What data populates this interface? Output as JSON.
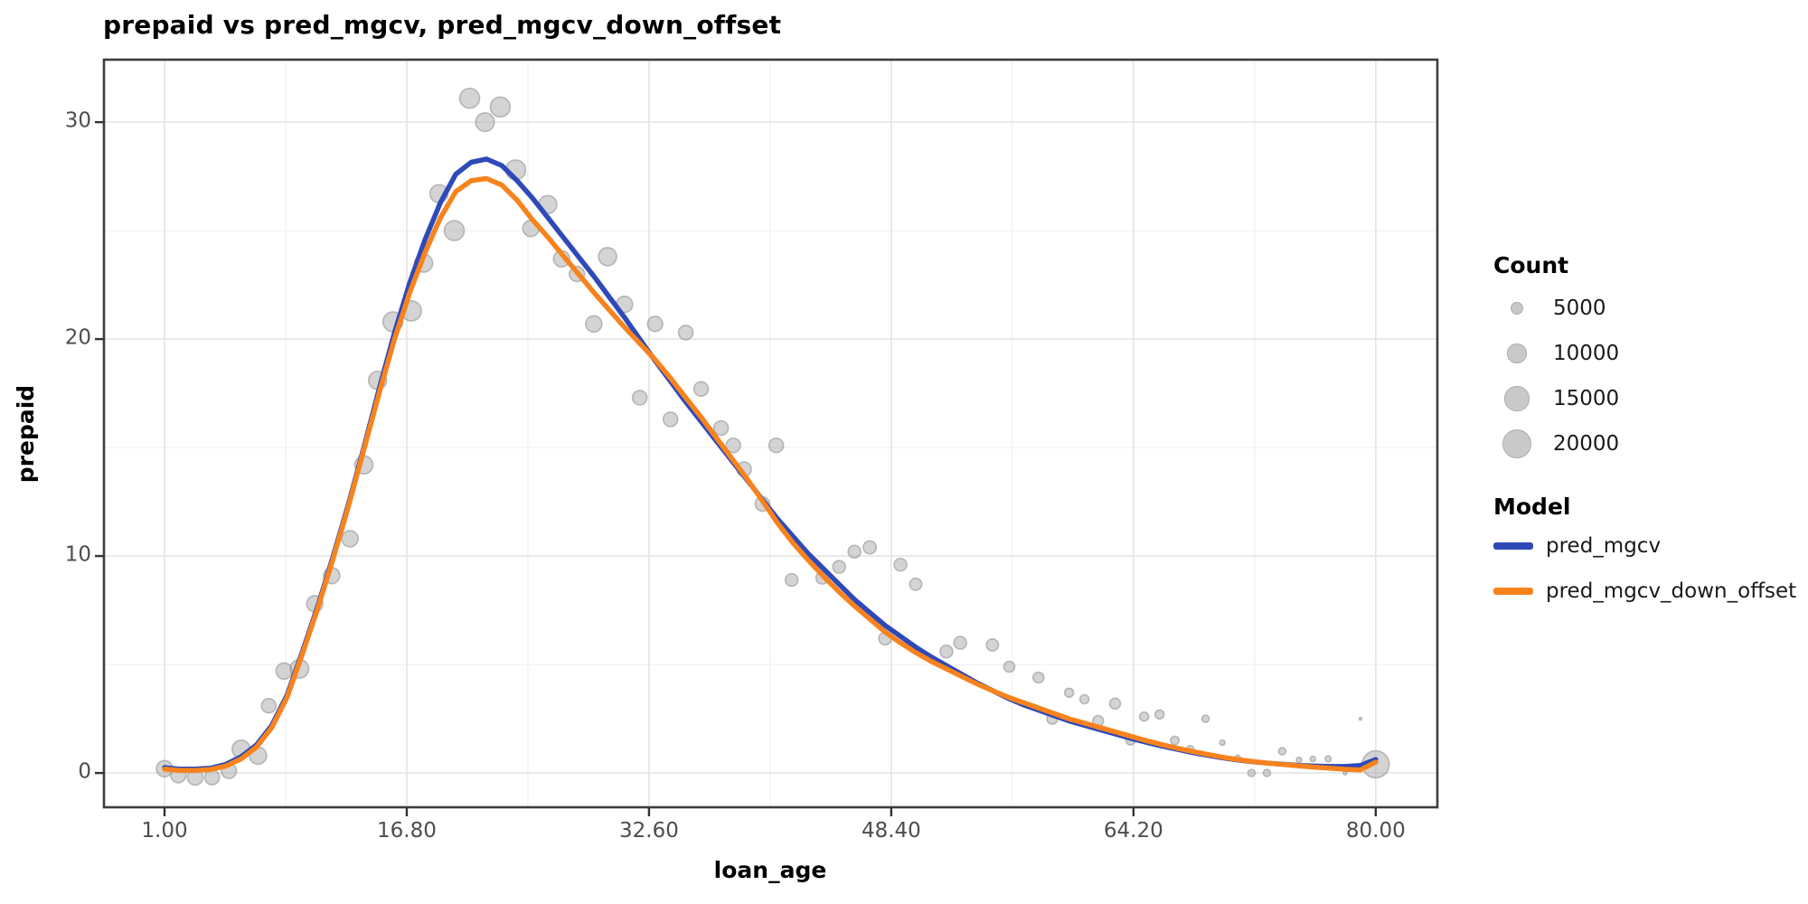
{
  "chart_data": {
    "type": "scatter",
    "title": "prepaid vs pred_mgcv, pred_mgcv_down_offset",
    "xlabel": "loan_age",
    "ylabel": "prepaid",
    "x_ticks": [
      "1.00",
      "16.80",
      "32.60",
      "48.40",
      "64.20",
      "80.00"
    ],
    "x_tick_values": [
      1,
      16.8,
      32.6,
      48.4,
      64.2,
      80
    ],
    "x_minor_values": [
      8.9,
      24.7,
      40.5,
      56.3,
      72.1
    ],
    "y_ticks": [
      "0",
      "10",
      "20",
      "30"
    ],
    "y_tick_values": [
      0,
      10,
      20,
      30
    ],
    "y_minor_values": [
      5,
      15,
      25
    ],
    "xlim": [
      -2.95,
      84.02
    ],
    "ylim": [
      -1.58,
      32.88
    ],
    "grid": {
      "major": true,
      "minor": true,
      "major_color": "#E4E4E4",
      "minor_color": "#F1F1F1"
    },
    "panel": {
      "border_color": "#3D3D3D",
      "background": "#FFFFFF",
      "tick_color": "#333333"
    },
    "point_style": {
      "fill": "#A9A9A9",
      "fill_opacity": 0.5,
      "stroke": "#8C8C8C",
      "stroke_opacity": 0.55
    },
    "points_format": [
      "loan_age",
      "prepaid",
      "count"
    ],
    "points": [
      [
        1.0,
        0.2,
        7600
      ],
      [
        1.9,
        -0.1,
        6800
      ],
      [
        3.0,
        -0.2,
        7000
      ],
      [
        4.1,
        -0.2,
        6500
      ],
      [
        5.2,
        0.1,
        6800
      ],
      [
        6.0,
        1.1,
        9050
      ],
      [
        7.1,
        0.8,
        8300
      ],
      [
        7.8,
        3.1,
        6250
      ],
      [
        8.8,
        4.7,
        7600
      ],
      [
        9.8,
        4.8,
        9500
      ],
      [
        10.8,
        7.8,
        7600
      ],
      [
        11.9,
        9.1,
        7600
      ],
      [
        13.1,
        10.8,
        7600
      ],
      [
        14.0,
        14.2,
        9050
      ],
      [
        14.9,
        18.1,
        9050
      ],
      [
        15.9,
        20.8,
        10650
      ],
      [
        17.1,
        21.3,
        11000
      ],
      [
        17.9,
        23.5,
        9050
      ],
      [
        18.9,
        26.7,
        9050
      ],
      [
        19.9,
        25.0,
        10650
      ],
      [
        20.9,
        31.1,
        10650
      ],
      [
        21.9,
        30.0,
        9500
      ],
      [
        22.9,
        30.7,
        10650
      ],
      [
        23.9,
        27.8,
        10650
      ],
      [
        24.9,
        25.1,
        7600
      ],
      [
        26.0,
        26.2,
        9050
      ],
      [
        26.9,
        23.7,
        7600
      ],
      [
        27.9,
        23.0,
        6800
      ],
      [
        29.0,
        20.7,
        7600
      ],
      [
        29.9,
        23.8,
        9050
      ],
      [
        31.0,
        21.6,
        7600
      ],
      [
        32.0,
        17.3,
        6250
      ],
      [
        33.0,
        20.7,
        6800
      ],
      [
        34.0,
        16.3,
        6250
      ],
      [
        35.0,
        20.3,
        6250
      ],
      [
        36.0,
        17.7,
        6250
      ],
      [
        37.3,
        15.9,
        6250
      ],
      [
        38.1,
        15.1,
        6250
      ],
      [
        38.8,
        14.0,
        6250
      ],
      [
        40.0,
        12.4,
        6250
      ],
      [
        40.9,
        15.1,
        6250
      ],
      [
        41.9,
        8.9,
        5000
      ],
      [
        43.9,
        9.0,
        5000
      ],
      [
        45.0,
        9.5,
        5000
      ],
      [
        46.0,
        10.2,
        5000
      ],
      [
        47.0,
        10.4,
        5300
      ],
      [
        48.0,
        6.2,
        5000
      ],
      [
        49.0,
        9.6,
        5000
      ],
      [
        50.0,
        8.7,
        4600
      ],
      [
        52.0,
        5.6,
        5000
      ],
      [
        52.9,
        6.0,
        5000
      ],
      [
        55.0,
        5.9,
        4600
      ],
      [
        56.1,
        4.9,
        3900
      ],
      [
        58.0,
        4.4,
        3900
      ],
      [
        58.9,
        2.5,
        3900
      ],
      [
        60.0,
        3.7,
        2850
      ],
      [
        61.0,
        3.4,
        2850
      ],
      [
        61.9,
        2.4,
        3900
      ],
      [
        63.0,
        3.2,
        3900
      ],
      [
        64.0,
        1.5,
        2850
      ],
      [
        64.9,
        2.6,
        2850
      ],
      [
        65.9,
        2.7,
        2850
      ],
      [
        66.9,
        1.5,
        2550
      ],
      [
        67.9,
        1.1,
        1950
      ],
      [
        68.9,
        2.5,
        1950
      ],
      [
        70.0,
        1.4,
        1200
      ],
      [
        71.0,
        0.7,
        1200
      ],
      [
        71.9,
        0.0,
        1950
      ],
      [
        72.9,
        0.0,
        1950
      ],
      [
        73.9,
        1.0,
        1950
      ],
      [
        75.0,
        0.6,
        1200
      ],
      [
        75.9,
        0.65,
        1200
      ],
      [
        76.9,
        0.65,
        1400
      ],
      [
        78.0,
        0.0,
        620
      ],
      [
        79.0,
        2.5,
        400
      ],
      [
        80.0,
        0.4,
        17800
      ]
    ],
    "series": [
      {
        "name": "pred_mgcv",
        "color": "#2E49B8",
        "x_start": 1,
        "x_step": 1,
        "y": [
          0.25,
          0.18,
          0.18,
          0.22,
          0.4,
          0.75,
          1.3,
          2.2,
          3.6,
          5.6,
          7.7,
          10.0,
          12.4,
          15.0,
          17.7,
          20.3,
          22.6,
          24.6,
          26.3,
          27.6,
          28.15,
          28.3,
          28.0,
          27.3,
          26.5,
          25.6,
          24.7,
          23.8,
          22.9,
          21.95,
          21.0,
          20.0,
          19.0,
          18.05,
          17.1,
          16.2,
          15.3,
          14.4,
          13.5,
          12.6,
          11.7,
          10.9,
          10.1,
          9.4,
          8.7,
          8.0,
          7.4,
          6.8,
          6.3,
          5.8,
          5.35,
          4.95,
          4.55,
          4.15,
          3.8,
          3.45,
          3.15,
          2.9,
          2.65,
          2.4,
          2.2,
          2.0,
          1.8,
          1.6,
          1.42,
          1.25,
          1.1,
          0.95,
          0.82,
          0.7,
          0.6,
          0.52,
          0.45,
          0.4,
          0.35,
          0.32,
          0.3,
          0.3,
          0.35,
          0.62
        ]
      },
      {
        "name": "pred_mgcv_down_offset",
        "color": "#F8831D",
        "x_start": 1,
        "x_step": 1,
        "y": [
          0.18,
          0.12,
          0.12,
          0.16,
          0.32,
          0.65,
          1.2,
          2.1,
          3.5,
          5.5,
          7.6,
          9.9,
          12.3,
          14.9,
          17.5,
          20.0,
          22.15,
          24.0,
          25.6,
          26.8,
          27.3,
          27.4,
          27.1,
          26.4,
          25.5,
          24.7,
          23.85,
          23.0,
          22.15,
          21.35,
          20.55,
          19.8,
          19.05,
          18.2,
          17.3,
          16.4,
          15.45,
          14.5,
          13.55,
          12.55,
          11.5,
          10.6,
          9.8,
          9.05,
          8.35,
          7.7,
          7.1,
          6.5,
          6.0,
          5.55,
          5.15,
          4.8,
          4.45,
          4.1,
          3.8,
          3.5,
          3.25,
          3.0,
          2.75,
          2.5,
          2.3,
          2.1,
          1.9,
          1.7,
          1.5,
          1.32,
          1.15,
          1.0,
          0.86,
          0.73,
          0.62,
          0.53,
          0.45,
          0.39,
          0.33,
          0.27,
          0.22,
          0.17,
          0.14,
          0.5
        ]
      }
    ],
    "legend": {
      "count_title": "Count",
      "count_labels": [
        "5000",
        "10000",
        "15000",
        "20000"
      ],
      "count_values": [
        5000,
        10000,
        15000,
        20000
      ],
      "count_bubble_color": "#C9C9C9",
      "model_title": "Model",
      "model_labels": [
        "pred_mgcv",
        "pred_mgcv_down_offset"
      ]
    }
  }
}
